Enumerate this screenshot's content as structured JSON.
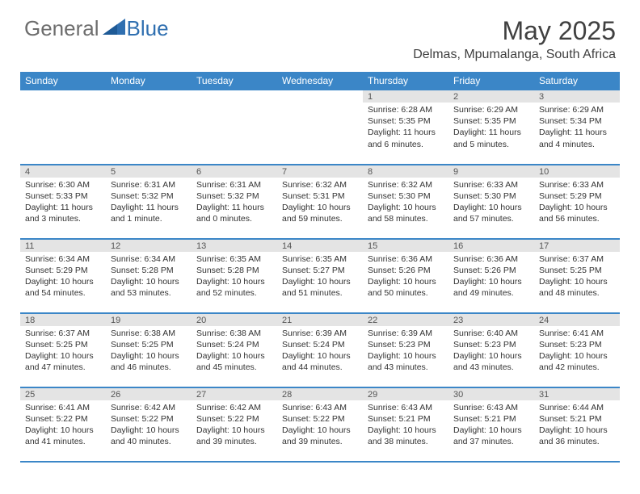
{
  "logo": {
    "general": "General",
    "blue": "Blue"
  },
  "title": "May 2025",
  "location": "Delmas, Mpumalanga, South Africa",
  "colors": {
    "header_bg": "#3b86c7",
    "header_text": "#ffffff",
    "daynum_bg": "#e4e4e4",
    "border": "#3b86c7",
    "logo_gray": "#6d6d6d",
    "logo_blue": "#2f6fb0"
  },
  "weekdays": [
    "Sunday",
    "Monday",
    "Tuesday",
    "Wednesday",
    "Thursday",
    "Friday",
    "Saturday"
  ],
  "weeks": [
    [
      {
        "n": "",
        "sr": "",
        "ss": "",
        "dl": ""
      },
      {
        "n": "",
        "sr": "",
        "ss": "",
        "dl": ""
      },
      {
        "n": "",
        "sr": "",
        "ss": "",
        "dl": ""
      },
      {
        "n": "",
        "sr": "",
        "ss": "",
        "dl": ""
      },
      {
        "n": "1",
        "sr": "Sunrise: 6:28 AM",
        "ss": "Sunset: 5:35 PM",
        "dl": "Daylight: 11 hours and 6 minutes."
      },
      {
        "n": "2",
        "sr": "Sunrise: 6:29 AM",
        "ss": "Sunset: 5:35 PM",
        "dl": "Daylight: 11 hours and 5 minutes."
      },
      {
        "n": "3",
        "sr": "Sunrise: 6:29 AM",
        "ss": "Sunset: 5:34 PM",
        "dl": "Daylight: 11 hours and 4 minutes."
      }
    ],
    [
      {
        "n": "4",
        "sr": "Sunrise: 6:30 AM",
        "ss": "Sunset: 5:33 PM",
        "dl": "Daylight: 11 hours and 3 minutes."
      },
      {
        "n": "5",
        "sr": "Sunrise: 6:31 AM",
        "ss": "Sunset: 5:32 PM",
        "dl": "Daylight: 11 hours and 1 minute."
      },
      {
        "n": "6",
        "sr": "Sunrise: 6:31 AM",
        "ss": "Sunset: 5:32 PM",
        "dl": "Daylight: 11 hours and 0 minutes."
      },
      {
        "n": "7",
        "sr": "Sunrise: 6:32 AM",
        "ss": "Sunset: 5:31 PM",
        "dl": "Daylight: 10 hours and 59 minutes."
      },
      {
        "n": "8",
        "sr": "Sunrise: 6:32 AM",
        "ss": "Sunset: 5:30 PM",
        "dl": "Daylight: 10 hours and 58 minutes."
      },
      {
        "n": "9",
        "sr": "Sunrise: 6:33 AM",
        "ss": "Sunset: 5:30 PM",
        "dl": "Daylight: 10 hours and 57 minutes."
      },
      {
        "n": "10",
        "sr": "Sunrise: 6:33 AM",
        "ss": "Sunset: 5:29 PM",
        "dl": "Daylight: 10 hours and 56 minutes."
      }
    ],
    [
      {
        "n": "11",
        "sr": "Sunrise: 6:34 AM",
        "ss": "Sunset: 5:29 PM",
        "dl": "Daylight: 10 hours and 54 minutes."
      },
      {
        "n": "12",
        "sr": "Sunrise: 6:34 AM",
        "ss": "Sunset: 5:28 PM",
        "dl": "Daylight: 10 hours and 53 minutes."
      },
      {
        "n": "13",
        "sr": "Sunrise: 6:35 AM",
        "ss": "Sunset: 5:28 PM",
        "dl": "Daylight: 10 hours and 52 minutes."
      },
      {
        "n": "14",
        "sr": "Sunrise: 6:35 AM",
        "ss": "Sunset: 5:27 PM",
        "dl": "Daylight: 10 hours and 51 minutes."
      },
      {
        "n": "15",
        "sr": "Sunrise: 6:36 AM",
        "ss": "Sunset: 5:26 PM",
        "dl": "Daylight: 10 hours and 50 minutes."
      },
      {
        "n": "16",
        "sr": "Sunrise: 6:36 AM",
        "ss": "Sunset: 5:26 PM",
        "dl": "Daylight: 10 hours and 49 minutes."
      },
      {
        "n": "17",
        "sr": "Sunrise: 6:37 AM",
        "ss": "Sunset: 5:25 PM",
        "dl": "Daylight: 10 hours and 48 minutes."
      }
    ],
    [
      {
        "n": "18",
        "sr": "Sunrise: 6:37 AM",
        "ss": "Sunset: 5:25 PM",
        "dl": "Daylight: 10 hours and 47 minutes."
      },
      {
        "n": "19",
        "sr": "Sunrise: 6:38 AM",
        "ss": "Sunset: 5:25 PM",
        "dl": "Daylight: 10 hours and 46 minutes."
      },
      {
        "n": "20",
        "sr": "Sunrise: 6:38 AM",
        "ss": "Sunset: 5:24 PM",
        "dl": "Daylight: 10 hours and 45 minutes."
      },
      {
        "n": "21",
        "sr": "Sunrise: 6:39 AM",
        "ss": "Sunset: 5:24 PM",
        "dl": "Daylight: 10 hours and 44 minutes."
      },
      {
        "n": "22",
        "sr": "Sunrise: 6:39 AM",
        "ss": "Sunset: 5:23 PM",
        "dl": "Daylight: 10 hours and 43 minutes."
      },
      {
        "n": "23",
        "sr": "Sunrise: 6:40 AM",
        "ss": "Sunset: 5:23 PM",
        "dl": "Daylight: 10 hours and 43 minutes."
      },
      {
        "n": "24",
        "sr": "Sunrise: 6:41 AM",
        "ss": "Sunset: 5:23 PM",
        "dl": "Daylight: 10 hours and 42 minutes."
      }
    ],
    [
      {
        "n": "25",
        "sr": "Sunrise: 6:41 AM",
        "ss": "Sunset: 5:22 PM",
        "dl": "Daylight: 10 hours and 41 minutes."
      },
      {
        "n": "26",
        "sr": "Sunrise: 6:42 AM",
        "ss": "Sunset: 5:22 PM",
        "dl": "Daylight: 10 hours and 40 minutes."
      },
      {
        "n": "27",
        "sr": "Sunrise: 6:42 AM",
        "ss": "Sunset: 5:22 PM",
        "dl": "Daylight: 10 hours and 39 minutes."
      },
      {
        "n": "28",
        "sr": "Sunrise: 6:43 AM",
        "ss": "Sunset: 5:22 PM",
        "dl": "Daylight: 10 hours and 39 minutes."
      },
      {
        "n": "29",
        "sr": "Sunrise: 6:43 AM",
        "ss": "Sunset: 5:21 PM",
        "dl": "Daylight: 10 hours and 38 minutes."
      },
      {
        "n": "30",
        "sr": "Sunrise: 6:43 AM",
        "ss": "Sunset: 5:21 PM",
        "dl": "Daylight: 10 hours and 37 minutes."
      },
      {
        "n": "31",
        "sr": "Sunrise: 6:44 AM",
        "ss": "Sunset: 5:21 PM",
        "dl": "Daylight: 10 hours and 36 minutes."
      }
    ]
  ]
}
